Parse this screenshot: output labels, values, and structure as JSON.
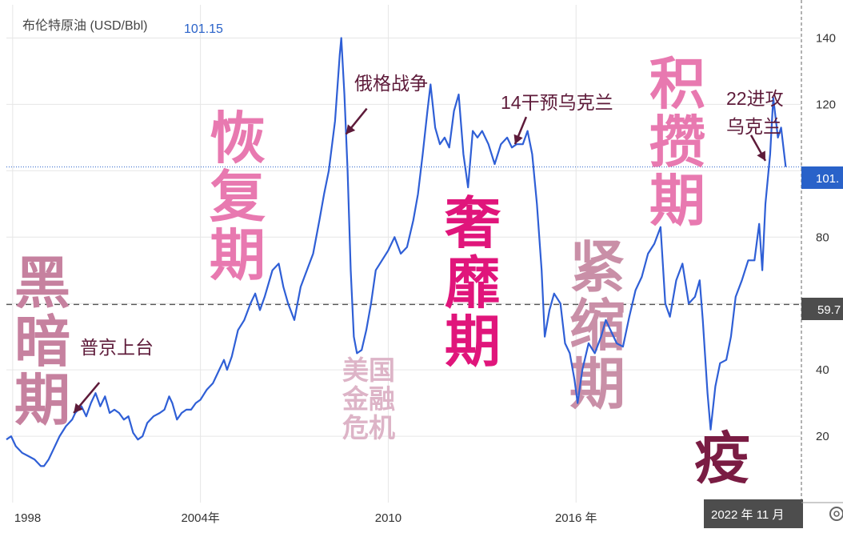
{
  "chart_data": {
    "type": "line",
    "title": "布伦特原油 (USD/Bbl)",
    "last_value": "101.15",
    "last_value_tag": "101.",
    "reference_value": 59.7,
    "reference_tag": "59.7",
    "cursor_date": "2022 年 11 月",
    "ylim": [
      0,
      150
    ],
    "y_ticks": [
      20,
      40,
      60,
      80,
      100,
      120,
      140
    ],
    "y_tick_labels": [
      "20",
      "40",
      "60",
      "80",
      "",
      "120",
      "140"
    ],
    "x_ticks": [
      {
        "x": 1998.0,
        "label": "1998"
      },
      {
        "x": 2004.0,
        "label": "2004年"
      },
      {
        "x": 2010.0,
        "label": "2010"
      },
      {
        "x": 2016.0,
        "label": "2016 年"
      }
    ],
    "xlim": [
      1997.8,
      2023.2
    ],
    "colors": {
      "line": "#2f5fd6",
      "reference": "#555555",
      "tag_blue": "#2962c9",
      "tag_dark": "#4d4d4d"
    },
    "series": [
      {
        "values": [
          [
            1997.8,
            19
          ],
          [
            1997.95,
            20
          ],
          [
            1998.1,
            17
          ],
          [
            1998.3,
            15
          ],
          [
            1998.5,
            14
          ],
          [
            1998.7,
            13
          ],
          [
            1998.9,
            11
          ],
          [
            1999.0,
            11
          ],
          [
            1999.15,
            13
          ],
          [
            1999.3,
            16
          ],
          [
            1999.5,
            20
          ],
          [
            1999.7,
            23
          ],
          [
            1999.9,
            25
          ],
          [
            2000.0,
            27
          ],
          [
            2000.2,
            29
          ],
          [
            2000.35,
            26
          ],
          [
            2000.5,
            30
          ],
          [
            2000.65,
            33
          ],
          [
            2000.8,
            29
          ],
          [
            2000.95,
            32
          ],
          [
            2001.1,
            27
          ],
          [
            2001.25,
            28
          ],
          [
            2001.4,
            27
          ],
          [
            2001.55,
            25
          ],
          [
            2001.7,
            26
          ],
          [
            2001.85,
            21
          ],
          [
            2002.0,
            19
          ],
          [
            2002.15,
            20
          ],
          [
            2002.3,
            24
          ],
          [
            2002.5,
            26
          ],
          [
            2002.7,
            27
          ],
          [
            2002.85,
            28
          ],
          [
            2003.0,
            32
          ],
          [
            2003.1,
            30
          ],
          [
            2003.25,
            25
          ],
          [
            2003.4,
            27
          ],
          [
            2003.55,
            28
          ],
          [
            2003.7,
            28
          ],
          [
            2003.85,
            30
          ],
          [
            2004.0,
            31
          ],
          [
            2004.2,
            34
          ],
          [
            2004.4,
            36
          ],
          [
            2004.6,
            40
          ],
          [
            2004.75,
            43
          ],
          [
            2004.85,
            40
          ],
          [
            2005.0,
            44
          ],
          [
            2005.2,
            52
          ],
          [
            2005.4,
            55
          ],
          [
            2005.6,
            60
          ],
          [
            2005.75,
            63
          ],
          [
            2005.9,
            58
          ],
          [
            2006.05,
            62
          ],
          [
            2006.3,
            70
          ],
          [
            2006.5,
            72
          ],
          [
            2006.65,
            65
          ],
          [
            2006.8,
            60
          ],
          [
            2007.0,
            55
          ],
          [
            2007.2,
            65
          ],
          [
            2007.4,
            70
          ],
          [
            2007.6,
            75
          ],
          [
            2007.8,
            85
          ],
          [
            2007.95,
            93
          ],
          [
            2008.1,
            100
          ],
          [
            2008.3,
            115
          ],
          [
            2008.45,
            135
          ],
          [
            2008.5,
            140
          ],
          [
            2008.6,
            123
          ],
          [
            2008.7,
            100
          ],
          [
            2008.8,
            70
          ],
          [
            2008.9,
            50
          ],
          [
            2009.0,
            45
          ],
          [
            2009.15,
            46
          ],
          [
            2009.3,
            52
          ],
          [
            2009.45,
            60
          ],
          [
            2009.6,
            70
          ],
          [
            2009.8,
            73
          ],
          [
            2010.0,
            76
          ],
          [
            2010.2,
            80
          ],
          [
            2010.4,
            75
          ],
          [
            2010.6,
            77
          ],
          [
            2010.8,
            85
          ],
          [
            2010.95,
            93
          ],
          [
            2011.1,
            105
          ],
          [
            2011.25,
            118
          ],
          [
            2011.35,
            126
          ],
          [
            2011.5,
            113
          ],
          [
            2011.65,
            108
          ],
          [
            2011.8,
            110
          ],
          [
            2011.95,
            107
          ],
          [
            2012.1,
            118
          ],
          [
            2012.25,
            123
          ],
          [
            2012.4,
            105
          ],
          [
            2012.55,
            95
          ],
          [
            2012.7,
            112
          ],
          [
            2012.85,
            110
          ],
          [
            2013.0,
            112
          ],
          [
            2013.2,
            108
          ],
          [
            2013.4,
            102
          ],
          [
            2013.6,
            108
          ],
          [
            2013.8,
            110
          ],
          [
            2013.95,
            107
          ],
          [
            2014.1,
            108
          ],
          [
            2014.3,
            108
          ],
          [
            2014.45,
            112
          ],
          [
            2014.6,
            105
          ],
          [
            2014.75,
            90
          ],
          [
            2014.9,
            70
          ],
          [
            2015.0,
            50
          ],
          [
            2015.15,
            58
          ],
          [
            2015.3,
            63
          ],
          [
            2015.5,
            60
          ],
          [
            2015.65,
            48
          ],
          [
            2015.8,
            45
          ],
          [
            2015.95,
            37
          ],
          [
            2016.05,
            30
          ],
          [
            2016.2,
            40
          ],
          [
            2016.4,
            48
          ],
          [
            2016.6,
            45
          ],
          [
            2016.8,
            50
          ],
          [
            2016.95,
            55
          ],
          [
            2017.1,
            52
          ],
          [
            2017.3,
            48
          ],
          [
            2017.5,
            47
          ],
          [
            2017.7,
            56
          ],
          [
            2017.9,
            64
          ],
          [
            2018.1,
            68
          ],
          [
            2018.3,
            75
          ],
          [
            2018.5,
            78
          ],
          [
            2018.7,
            83
          ],
          [
            2018.85,
            60
          ],
          [
            2019.0,
            56
          ],
          [
            2019.2,
            67
          ],
          [
            2019.4,
            72
          ],
          [
            2019.6,
            60
          ],
          [
            2019.8,
            62
          ],
          [
            2019.95,
            67
          ],
          [
            2020.05,
            55
          ],
          [
            2020.2,
            33
          ],
          [
            2020.3,
            22
          ],
          [
            2020.45,
            35
          ],
          [
            2020.6,
            42
          ],
          [
            2020.8,
            43
          ],
          [
            2020.95,
            50
          ],
          [
            2021.1,
            62
          ],
          [
            2021.3,
            67
          ],
          [
            2021.5,
            73
          ],
          [
            2021.7,
            73
          ],
          [
            2021.85,
            84
          ],
          [
            2021.95,
            70
          ],
          [
            2022.05,
            90
          ],
          [
            2022.2,
            105
          ],
          [
            2022.3,
            122
          ],
          [
            2022.45,
            110
          ],
          [
            2022.55,
            113
          ],
          [
            2022.65,
            105
          ],
          [
            2022.7,
            101.15
          ]
        ]
      }
    ],
    "annotations": [
      {
        "text": "普京上台",
        "arrow": {
          "x": 1999.95,
          "y": 27
        }
      },
      {
        "text": "俄格战争",
        "arrow": {
          "x": 2008.65,
          "y": 111
        }
      },
      {
        "text": "14干预乌克兰",
        "arrow": {
          "x": 2014.05,
          "y": 108
        }
      },
      {
        "text": "22进攻",
        "arrow": null
      },
      {
        "text": "乌克兰",
        "arrow": {
          "x": 2022.05,
          "y": 103
        }
      }
    ],
    "phases": [
      {
        "lines": [
          "黑",
          "暗",
          "期"
        ],
        "color": "#c6819f"
      },
      {
        "lines": [
          "恢",
          "复",
          "期"
        ],
        "color": "#e879b0"
      },
      {
        "lines": [
          "美国",
          "金融",
          "危机"
        ],
        "color": "#ddb4c7"
      },
      {
        "lines": [
          "奢",
          "靡",
          "期"
        ],
        "color": "#e0157b"
      },
      {
        "lines": [
          "紧",
          "缩",
          "期"
        ],
        "color": "#c98fa7"
      },
      {
        "lines": [
          "积",
          "攒",
          "期"
        ],
        "color": "#e879b0"
      },
      {
        "lines": [
          "疫"
        ],
        "color": "#7a1c43"
      }
    ]
  }
}
